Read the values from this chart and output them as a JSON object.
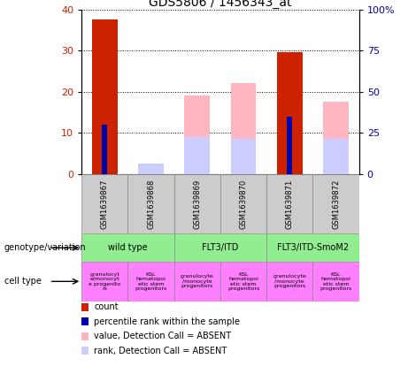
{
  "title": "GDS5806 / 1456343_at",
  "samples": [
    "GSM1639867",
    "GSM1639868",
    "GSM1639869",
    "GSM1639870",
    "GSM1639871",
    "GSM1639872"
  ],
  "red_bars": [
    37.5,
    0,
    0,
    0,
    29.5,
    0
  ],
  "blue_bars": [
    12,
    0,
    0,
    0,
    14,
    0
  ],
  "pink_bars": [
    0,
    1.5,
    19,
    22,
    0,
    17.5
  ],
  "lavender_bars": [
    0,
    2.5,
    9,
    8.5,
    0,
    8.5
  ],
  "ylim_left": [
    0,
    40
  ],
  "ylim_right": [
    0,
    100
  ],
  "yticks_left": [
    0,
    10,
    20,
    30,
    40
  ],
  "yticks_right": [
    0,
    25,
    50,
    75,
    100
  ],
  "yticklabels_right": [
    "0",
    "25",
    "50",
    "75",
    "100%"
  ],
  "bar_width": 0.55,
  "blue_bar_width": 0.12,
  "sample_bg_color": "#cccccc",
  "red_color": "#cc2200",
  "blue_color": "#0000aa",
  "pink_color": "#ffb6c1",
  "lavender_color": "#ccccff",
  "green_color": "#90ee90",
  "magenta_color": "#ff80ff",
  "geno_groups": [
    {
      "label": "wild type",
      "start": 0,
      "end": 2
    },
    {
      "label": "FLT3/ITD",
      "start": 2,
      "end": 4
    },
    {
      "label": "FLT3/ITD-SmoM2",
      "start": 4,
      "end": 6
    }
  ],
  "cell_labels_left": [
    "granulocyt\ne/monocyt\ne progenito\nrs",
    "KSL\nhematopoi\netic stem\nprogenitors"
  ],
  "cell_labels_mid": [
    "granulocyte\n/monocyte\nprogenitors",
    "KSL\nhematopoi\netic stem\nprogenitors"
  ],
  "cell_labels_right": [
    "granulocyte\n/monocyte\nprogenitors",
    "KSL\nhematopoi\netic stem\nprogenitors"
  ],
  "legend_items": [
    {
      "label": "count",
      "color": "#cc2200"
    },
    {
      "label": "percentile rank within the sample",
      "color": "#0000aa"
    },
    {
      "label": "value, Detection Call = ABSENT",
      "color": "#ffb6c1"
    },
    {
      "label": "rank, Detection Call = ABSENT",
      "color": "#ccccff"
    }
  ]
}
